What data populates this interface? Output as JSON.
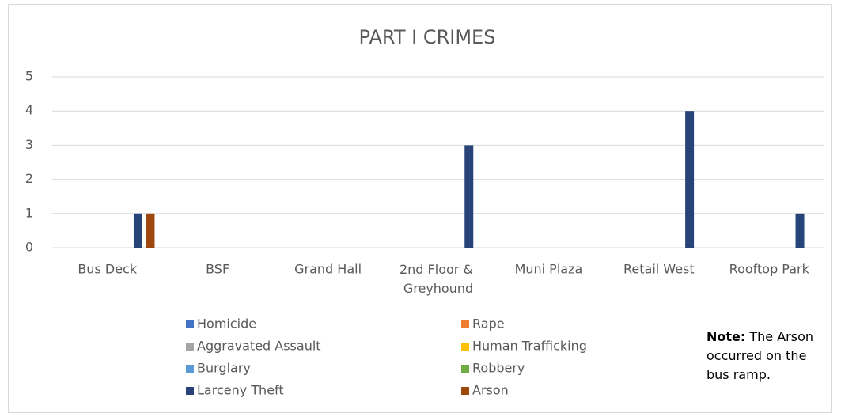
{
  "chart_data": {
    "type": "bar",
    "title": "PART I CRIMES",
    "categories": [
      "Bus Deck",
      "BSF",
      "Grand Hall",
      "2nd Floor & Greyhound",
      "Muni Plaza",
      "Retail West",
      "Rooftop Park"
    ],
    "series": [
      {
        "name": "Homicide",
        "color": "#4472c4",
        "values": [
          0,
          0,
          0,
          0,
          0,
          0,
          0
        ]
      },
      {
        "name": "Rape",
        "color": "#ed7d31",
        "values": [
          0,
          0,
          0,
          0,
          0,
          0,
          0
        ]
      },
      {
        "name": "Aggravated Assault",
        "color": "#a5a5a5",
        "values": [
          0,
          0,
          0,
          0,
          0,
          0,
          0
        ]
      },
      {
        "name": "Human Trafficking",
        "color": "#ffc000",
        "values": [
          0,
          0,
          0,
          0,
          0,
          0,
          0
        ]
      },
      {
        "name": "Burglary",
        "color": "#5b9bd5",
        "values": [
          0,
          0,
          0,
          0,
          0,
          0,
          0
        ]
      },
      {
        "name": "Robbery",
        "color": "#70ad47",
        "values": [
          0,
          0,
          0,
          0,
          0,
          0,
          0
        ]
      },
      {
        "name": "Larceny Theft",
        "color": "#264478",
        "values": [
          1,
          0,
          0,
          3,
          0,
          4,
          1
        ]
      },
      {
        "name": "Arson",
        "color": "#9e480e",
        "values": [
          1,
          0,
          0,
          0,
          0,
          0,
          0
        ]
      }
    ],
    "ylim": [
      0,
      5
    ],
    "yticks": [
      0,
      1,
      2,
      3,
      4,
      5
    ],
    "grid": true,
    "legend": "bottom",
    "note_label": "Note:",
    "note_text": "The Arson occurred on the bus ramp."
  }
}
